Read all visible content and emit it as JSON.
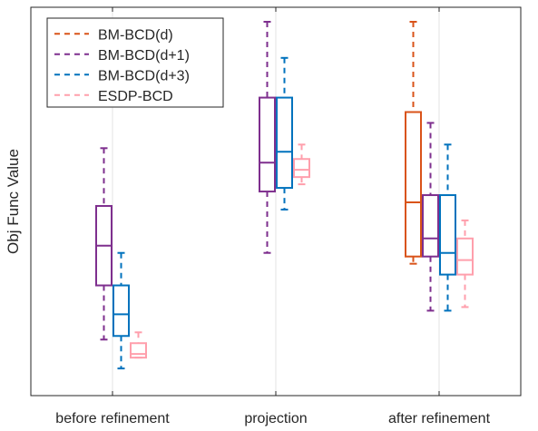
{
  "chart_data": {
    "type": "box",
    "title": "",
    "xlabel": "",
    "ylabel": "Obj Func Value",
    "ylim": [
      0,
      100
    ],
    "yticks_shown": false,
    "grid": "x-only",
    "legend": "top-left",
    "categories": [
      "before refinement",
      "projection",
      "after refinement"
    ],
    "series": [
      {
        "name": "BM-BCD(d)",
        "color": "#d95319",
        "boxes": [
          null,
          null,
          {
            "whisker_low": 33,
            "q1": 35,
            "median": 50,
            "q3": 75,
            "whisker_high": 100
          }
        ]
      },
      {
        "name": "BM-BCD(d+1)",
        "color": "#7e2f8e",
        "boxes": [
          {
            "whisker_low": 12,
            "q1": 27,
            "median": 38,
            "q3": 49,
            "whisker_high": 65
          },
          {
            "whisker_low": 36,
            "q1": 53,
            "median": 61,
            "q3": 79,
            "whisker_high": 100
          },
          {
            "whisker_low": 20,
            "q1": 35,
            "median": 40,
            "q3": 52,
            "whisker_high": 72
          }
        ]
      },
      {
        "name": "BM-BCD(d+3)",
        "color": "#0072bd",
        "boxes": [
          {
            "whisker_low": 4,
            "q1": 13,
            "median": 19,
            "q3": 27,
            "whisker_high": 36
          },
          {
            "whisker_low": 48,
            "q1": 54,
            "median": 64,
            "q3": 79,
            "whisker_high": 90
          },
          {
            "whisker_low": 20,
            "q1": 30,
            "median": 36,
            "q3": 52,
            "whisker_high": 66
          }
        ]
      },
      {
        "name": "ESDP-BCD",
        "color": "#ff9fac",
        "boxes": [
          {
            "whisker_low": 7,
            "q1": 7,
            "median": 8,
            "q3": 11,
            "whisker_high": 14
          },
          {
            "whisker_low": 55,
            "q1": 57,
            "median": 59,
            "q3": 62,
            "whisker_high": 66
          },
          {
            "whisker_low": 21,
            "q1": 30,
            "median": 34,
            "q3": 40,
            "whisker_high": 45
          }
        ]
      }
    ]
  }
}
